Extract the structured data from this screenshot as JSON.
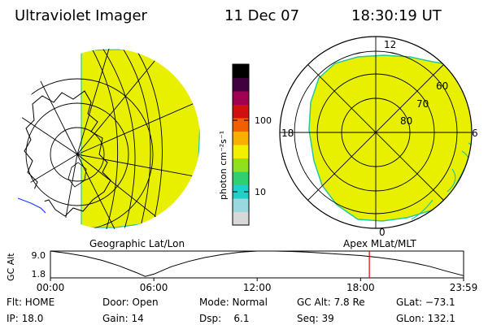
{
  "header": {
    "title": "Ultraviolet Imager",
    "date": "11 Dec 07",
    "time": "18:30:19 UT"
  },
  "left_map": {
    "label": "Geographic Lat/Lon",
    "fill_color": "#e8f000",
    "edge_color": "#22c8a0"
  },
  "right_map": {
    "label": "Apex MLat/MLT",
    "mlt_labels": {
      "top": "12",
      "left": "18",
      "right": "6",
      "bottom": "0"
    },
    "lat_labels": [
      "60",
      "70",
      "80"
    ],
    "fill_color": "#e8f000",
    "edge_color": "#22c8a0"
  },
  "colorbar": {
    "unit_label": "photon cm⁻²s⁻¹",
    "ticks": [
      "100",
      "10"
    ],
    "scale": "log",
    "colors": [
      "#d8d8d8",
      "#9ad8e0",
      "#20d0c8",
      "#30d070",
      "#90e020",
      "#f0f000",
      "#f8b000",
      "#f06000",
      "#d01010",
      "#a00050",
      "#400040",
      "#000000"
    ]
  },
  "chart_data": {
    "type": "line",
    "ylabel": "GC Alt",
    "yticks": [
      "9.0",
      "1.8"
    ],
    "ylim": [
      1.8,
      9.0
    ],
    "x_ticks": [
      "00:00",
      "06:00",
      "12:00",
      "18:00",
      "23:59"
    ],
    "x": [
      0,
      1,
      2,
      3,
      4,
      5,
      5.5,
      6,
      7,
      8,
      9,
      10,
      11,
      12,
      13,
      14,
      15,
      16,
      17,
      18,
      19,
      20,
      21,
      22,
      23,
      23.98
    ],
    "values": [
      9.0,
      8.4,
      7.6,
      6.5,
      5.0,
      3.2,
      2.2,
      2.8,
      4.8,
      6.2,
      7.3,
      8.1,
      8.7,
      9.0,
      9.0,
      8.9,
      8.7,
      8.4,
      8.1,
      7.8,
      7.3,
      6.7,
      5.9,
      4.9,
      3.6,
      2.4
    ],
    "marker": {
      "x": 18.51,
      "color": "#e00000"
    }
  },
  "footer": {
    "rows": [
      [
        "Flt: HOME",
        "Door: Open",
        "Mode: Normal",
        "GC Alt: 7.8 Re",
        "GLat: −73.1"
      ],
      [
        "IP: 18.0",
        "Gain: 14",
        "Dsp:    6.1",
        "Seq: 39",
        "GLon: 132.1"
      ]
    ]
  }
}
